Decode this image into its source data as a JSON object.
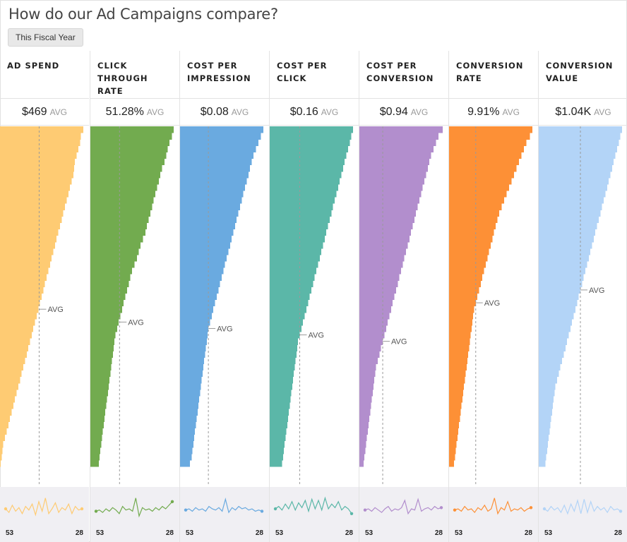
{
  "page": {
    "title": "How do our Ad Campaigns compare?",
    "filter_label": "This Fiscal Year"
  },
  "avg_suffix": "AVG",
  "chart_data": [
    {
      "type": "bar",
      "metric": "AD SPEND",
      "header": "AD SPEND",
      "avg_value": "$469",
      "color": "#fecb73",
      "avg_fraction": 0.47,
      "values": [
        1.0,
        0.97,
        0.96,
        0.94,
        0.92,
        0.9,
        0.89,
        0.88,
        0.86,
        0.84,
        0.82,
        0.8,
        0.78,
        0.76,
        0.74,
        0.72,
        0.7,
        0.68,
        0.66,
        0.64,
        0.62,
        0.6,
        0.58,
        0.56,
        0.54,
        0.52,
        0.5,
        0.48,
        0.46,
        0.44,
        0.42,
        0.4,
        0.38,
        0.36,
        0.34,
        0.32,
        0.3,
        0.28,
        0.26,
        0.24,
        0.22,
        0.2,
        0.18,
        0.16,
        0.14,
        0.12,
        0.1,
        0.08,
        0.06,
        0.04,
        0.03,
        0.02,
        0.01
      ],
      "spark": {
        "start": "53",
        "end": "28",
        "values": [
          0.5,
          0.35,
          0.65,
          0.4,
          0.55,
          0.3,
          0.6,
          0.45,
          0.7,
          0.25,
          0.8,
          0.4,
          0.95,
          0.3,
          0.5,
          0.75,
          0.35,
          0.55,
          0.45,
          0.7,
          0.3,
          0.6,
          0.45,
          0.5
        ]
      }
    },
    {
      "type": "bar",
      "metric": "CLICK THROUGH RATE",
      "header": "CLICK\nTHROUGH\nRATE",
      "avg_value": "51.28%",
      "color": "#72ab4f",
      "avg_fraction": 0.35,
      "values": [
        1.0,
        0.98,
        0.95,
        0.93,
        0.91,
        0.89,
        0.86,
        0.84,
        0.82,
        0.8,
        0.78,
        0.76,
        0.74,
        0.72,
        0.7,
        0.68,
        0.66,
        0.63,
        0.6,
        0.58,
        0.56,
        0.53,
        0.5,
        0.48,
        0.46,
        0.44,
        0.42,
        0.4,
        0.38,
        0.36,
        0.34,
        0.32,
        0.3,
        0.29,
        0.28,
        0.27,
        0.26,
        0.25,
        0.24,
        0.23,
        0.22,
        0.21,
        0.2,
        0.19,
        0.18,
        0.17,
        0.16,
        0.15,
        0.14,
        0.13,
        0.12,
        0.11,
        0.1
      ],
      "spark": {
        "start": "53",
        "end": "28",
        "values": [
          0.4,
          0.45,
          0.35,
          0.5,
          0.4,
          0.55,
          0.45,
          0.3,
          0.6,
          0.45,
          0.5,
          0.4,
          0.95,
          0.2,
          0.55,
          0.45,
          0.5,
          0.4,
          0.55,
          0.45,
          0.6,
          0.5,
          0.65,
          0.8
        ]
      }
    },
    {
      "type": "bar",
      "metric": "COST PER IMPRESSION",
      "header": "COST PER\nIMPRESSION",
      "avg_value": "$0.08",
      "color": "#6aaae0",
      "avg_fraction": 0.34,
      "values": [
        1.0,
        0.97,
        0.94,
        0.91,
        0.88,
        0.86,
        0.84,
        0.82,
        0.8,
        0.78,
        0.76,
        0.74,
        0.72,
        0.7,
        0.68,
        0.66,
        0.64,
        0.62,
        0.6,
        0.58,
        0.56,
        0.54,
        0.52,
        0.5,
        0.48,
        0.46,
        0.44,
        0.42,
        0.4,
        0.38,
        0.36,
        0.34,
        0.33,
        0.32,
        0.31,
        0.3,
        0.29,
        0.28,
        0.27,
        0.26,
        0.25,
        0.24,
        0.23,
        0.22,
        0.21,
        0.2,
        0.19,
        0.18,
        0.17,
        0.16,
        0.15,
        0.14,
        0.12
      ],
      "spark": {
        "start": "53",
        "end": "28",
        "values": [
          0.45,
          0.5,
          0.4,
          0.55,
          0.45,
          0.5,
          0.4,
          0.6,
          0.5,
          0.45,
          0.55,
          0.4,
          0.9,
          0.35,
          0.55,
          0.45,
          0.6,
          0.5,
          0.55,
          0.45,
          0.5,
          0.4,
          0.45,
          0.4
        ]
      }
    },
    {
      "type": "bar",
      "metric": "COST PER CLICK",
      "header": "COST PER\nCLICK",
      "avg_value": "$0.16",
      "color": "#5bb7a8",
      "avg_fraction": 0.36,
      "values": [
        1.0,
        0.98,
        0.96,
        0.94,
        0.92,
        0.9,
        0.88,
        0.86,
        0.84,
        0.82,
        0.8,
        0.78,
        0.76,
        0.74,
        0.72,
        0.7,
        0.68,
        0.66,
        0.64,
        0.62,
        0.6,
        0.58,
        0.56,
        0.54,
        0.52,
        0.5,
        0.48,
        0.46,
        0.44,
        0.42,
        0.4,
        0.38,
        0.36,
        0.34,
        0.33,
        0.32,
        0.31,
        0.3,
        0.29,
        0.28,
        0.27,
        0.26,
        0.25,
        0.24,
        0.23,
        0.22,
        0.21,
        0.2,
        0.19,
        0.18,
        0.17,
        0.16,
        0.15
      ],
      "spark": {
        "start": "53",
        "end": "28",
        "values": [
          0.5,
          0.6,
          0.45,
          0.7,
          0.5,
          0.8,
          0.45,
          0.75,
          0.55,
          0.85,
          0.4,
          0.9,
          0.5,
          0.85,
          0.45,
          0.95,
          0.5,
          0.7,
          0.55,
          0.8,
          0.45,
          0.6,
          0.5,
          0.3
        ]
      }
    },
    {
      "type": "bar",
      "metric": "COST PER CONVERSION",
      "header": "COST PER\nCONVERSION",
      "avg_value": "$0.94",
      "color": "#b28ecd",
      "avg_fraction": 0.28,
      "values": [
        1.0,
        0.95,
        0.92,
        0.89,
        0.86,
        0.84,
        0.82,
        0.8,
        0.78,
        0.76,
        0.74,
        0.72,
        0.7,
        0.68,
        0.66,
        0.64,
        0.62,
        0.6,
        0.58,
        0.56,
        0.54,
        0.52,
        0.5,
        0.48,
        0.46,
        0.44,
        0.42,
        0.4,
        0.38,
        0.36,
        0.34,
        0.32,
        0.3,
        0.28,
        0.26,
        0.24,
        0.22,
        0.2,
        0.19,
        0.18,
        0.17,
        0.16,
        0.15,
        0.14,
        0.13,
        0.12,
        0.11,
        0.1,
        0.09,
        0.08,
        0.07,
        0.06,
        0.05
      ],
      "spark": {
        "start": "53",
        "end": "28",
        "values": [
          0.45,
          0.5,
          0.4,
          0.55,
          0.45,
          0.35,
          0.5,
          0.6,
          0.4,
          0.5,
          0.45,
          0.55,
          0.85,
          0.3,
          0.5,
          0.45,
          0.9,
          0.4,
          0.5,
          0.55,
          0.45,
          0.6,
          0.5,
          0.55
        ]
      }
    },
    {
      "type": "bar",
      "metric": "CONVERSION RATE",
      "header": "CONVERSION\nRATE",
      "avg_value": "9.91%",
      "color": "#fd9036",
      "avg_fraction": 0.32,
      "values": [
        1.0,
        0.97,
        0.93,
        0.9,
        0.87,
        0.84,
        0.81,
        0.78,
        0.75,
        0.72,
        0.69,
        0.66,
        0.63,
        0.6,
        0.58,
        0.56,
        0.54,
        0.52,
        0.5,
        0.48,
        0.46,
        0.44,
        0.42,
        0.4,
        0.38,
        0.36,
        0.34,
        0.32,
        0.3,
        0.29,
        0.28,
        0.27,
        0.26,
        0.25,
        0.24,
        0.23,
        0.22,
        0.21,
        0.2,
        0.19,
        0.18,
        0.17,
        0.16,
        0.15,
        0.14,
        0.13,
        0.12,
        0.11,
        0.1,
        0.09,
        0.08,
        0.07,
        0.06
      ],
      "spark": {
        "start": "53",
        "end": "28",
        "values": [
          0.45,
          0.5,
          0.4,
          0.6,
          0.45,
          0.5,
          0.35,
          0.55,
          0.45,
          0.65,
          0.4,
          0.5,
          0.95,
          0.3,
          0.55,
          0.45,
          0.8,
          0.4,
          0.5,
          0.45,
          0.55,
          0.4,
          0.5,
          0.55
        ]
      }
    },
    {
      "type": "bar",
      "metric": "CONVERSION VALUE",
      "header": "CONVERSION\nVALUE",
      "avg_value": "$1.04K",
      "color": "#b3d4f7",
      "avg_fraction": 0.5,
      "values": [
        1.0,
        0.98,
        0.96,
        0.94,
        0.92,
        0.9,
        0.88,
        0.86,
        0.84,
        0.82,
        0.8,
        0.78,
        0.76,
        0.74,
        0.72,
        0.7,
        0.68,
        0.66,
        0.64,
        0.62,
        0.6,
        0.58,
        0.56,
        0.54,
        0.52,
        0.5,
        0.48,
        0.46,
        0.44,
        0.42,
        0.4,
        0.38,
        0.36,
        0.34,
        0.32,
        0.3,
        0.28,
        0.26,
        0.24,
        0.22,
        0.2,
        0.19,
        0.18,
        0.17,
        0.16,
        0.15,
        0.14,
        0.13,
        0.12,
        0.11,
        0.1,
        0.09,
        0.08
      ],
      "spark": {
        "start": "53",
        "end": "28",
        "values": [
          0.5,
          0.4,
          0.6,
          0.45,
          0.55,
          0.35,
          0.65,
          0.3,
          0.7,
          0.4,
          0.85,
          0.3,
          0.9,
          0.35,
          0.8,
          0.4,
          0.6,
          0.45,
          0.55,
          0.35,
          0.6,
          0.45,
          0.5,
          0.4
        ]
      }
    }
  ]
}
